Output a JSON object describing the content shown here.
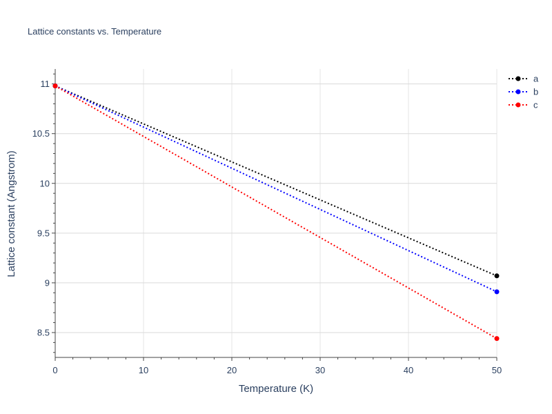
{
  "chart_data": {
    "type": "line",
    "title": "Lattice constants vs. Temperature",
    "xlabel": "Temperature (K)",
    "ylabel": "Lattice constant (Angstrom)",
    "x": [
      0,
      50
    ],
    "xlim": [
      0,
      50
    ],
    "ylim": [
      8.25,
      11.15
    ],
    "xticks": [
      0,
      10,
      20,
      30,
      40,
      50
    ],
    "xtick_labels": [
      "0",
      "10",
      "20",
      "30",
      "40",
      "50"
    ],
    "yticks": [
      8.5,
      9,
      9.5,
      10,
      10.5,
      11
    ],
    "ytick_labels": [
      "8.5",
      "9",
      "9.5",
      "10",
      "10.5",
      "11"
    ],
    "grid": true,
    "legend_position": "top-right",
    "series": [
      {
        "name": "a",
        "color": "#000000",
        "values": [
          10.98,
          9.07
        ]
      },
      {
        "name": "b",
        "color": "#0000ff",
        "values": [
          10.98,
          8.91
        ]
      },
      {
        "name": "c",
        "color": "#ff0000",
        "values": [
          10.98,
          8.44
        ]
      }
    ]
  }
}
